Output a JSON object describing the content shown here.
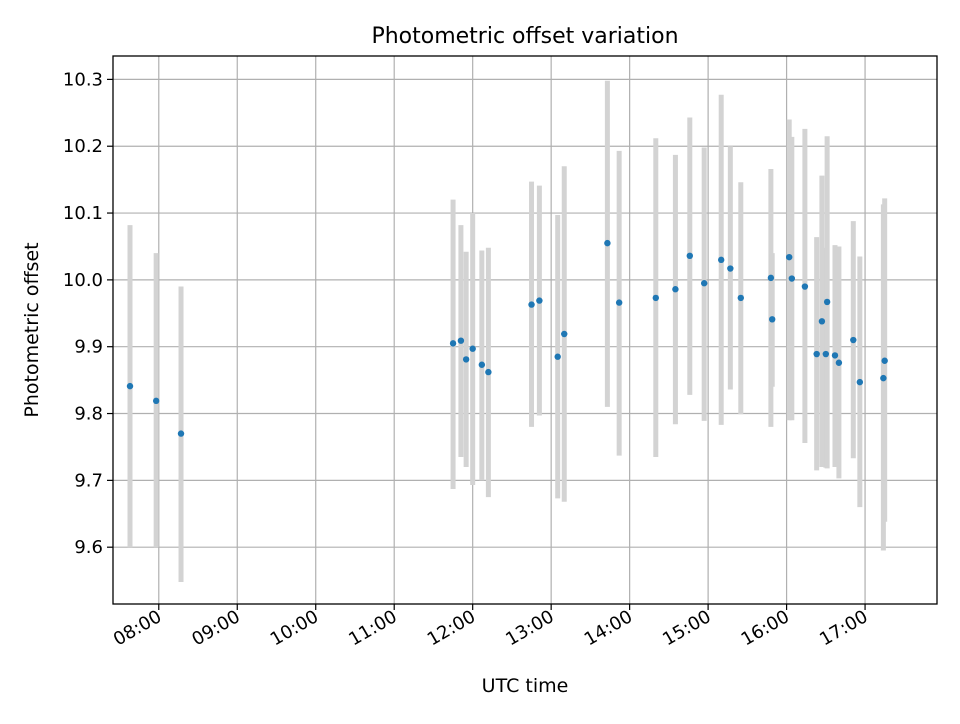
{
  "chart_data": {
    "type": "scatter",
    "title": "Photometric offset variation",
    "xlabel": "UTC time",
    "ylabel": "Photometric offset",
    "x_axis": {
      "type": "time",
      "range": [
        "07:25",
        "17:55"
      ],
      "tick_labels": [
        "08:00",
        "09:00",
        "10:00",
        "11:00",
        "12:00",
        "13:00",
        "14:00",
        "15:00",
        "16:00",
        "17:00"
      ]
    },
    "y_axis": {
      "range": [
        9.515,
        10.335
      ],
      "tick_labels": [
        "9.6",
        "9.7",
        "9.8",
        "9.9",
        "10.0",
        "10.1",
        "10.2",
        "10.3"
      ]
    },
    "grid": true,
    "colors": {
      "marker": "#1f77b4",
      "errorbar": "#d3d3d3",
      "grid": "#b0b0b0"
    },
    "series": [
      {
        "points": [
          {
            "x": "07:38",
            "y": 9.841,
            "low": 9.6,
            "high": 10.082
          },
          {
            "x": "07:58",
            "y": 9.819,
            "low": 9.6,
            "high": 10.04
          },
          {
            "x": "08:17",
            "y": 9.77,
            "low": 9.548,
            "high": 9.99
          },
          {
            "x": "11:45",
            "y": 9.905,
            "low": 9.687,
            "high": 10.12
          },
          {
            "x": "11:51",
            "y": 9.909,
            "low": 9.735,
            "high": 10.082
          },
          {
            "x": "11:55",
            "y": 9.881,
            "low": 9.72,
            "high": 10.042
          },
          {
            "x": "12:00",
            "y": 9.897,
            "low": 9.693,
            "high": 10.1
          },
          {
            "x": "12:07",
            "y": 9.873,
            "low": 9.7,
            "high": 10.044
          },
          {
            "x": "12:12",
            "y": 9.862,
            "low": 9.675,
            "high": 10.048
          },
          {
            "x": "12:45",
            "y": 9.963,
            "low": 9.78,
            "high": 10.147
          },
          {
            "x": "12:51",
            "y": 9.969,
            "low": 9.797,
            "high": 10.141
          },
          {
            "x": "13:05",
            "y": 9.885,
            "low": 9.673,
            "high": 10.097
          },
          {
            "x": "13:10",
            "y": 9.919,
            "low": 9.668,
            "high": 10.17
          },
          {
            "x": "13:43",
            "y": 10.055,
            "low": 9.81,
            "high": 10.298
          },
          {
            "x": "13:52",
            "y": 9.966,
            "low": 9.737,
            "high": 10.193
          },
          {
            "x": "14:20",
            "y": 9.973,
            "low": 9.735,
            "high": 10.212
          },
          {
            "x": "14:35",
            "y": 9.986,
            "low": 9.784,
            "high": 10.187
          },
          {
            "x": "14:46",
            "y": 10.036,
            "low": 9.828,
            "high": 10.243
          },
          {
            "x": "14:57",
            "y": 9.995,
            "low": 9.789,
            "high": 10.198
          },
          {
            "x": "15:10",
            "y": 10.03,
            "low": 9.783,
            "high": 10.277
          },
          {
            "x": "15:17",
            "y": 10.017,
            "low": 9.836,
            "high": 10.2
          },
          {
            "x": "15:25",
            "y": 9.973,
            "low": 9.799,
            "high": 10.146
          },
          {
            "x": "15:48",
            "y": 10.003,
            "low": 9.78,
            "high": 10.166
          },
          {
            "x": "15:49",
            "y": 9.941,
            "low": 9.84,
            "high": 10.04
          },
          {
            "x": "16:02",
            "y": 10.034,
            "low": 9.79,
            "high": 10.24
          },
          {
            "x": "16:04",
            "y": 10.002,
            "low": 9.79,
            "high": 10.214
          },
          {
            "x": "16:14",
            "y": 9.99,
            "low": 9.756,
            "high": 10.226
          },
          {
            "x": "16:23",
            "y": 9.889,
            "low": 9.715,
            "high": 10.064
          },
          {
            "x": "16:27",
            "y": 9.938,
            "low": 9.72,
            "high": 10.156
          },
          {
            "x": "16:30",
            "y": 9.889,
            "low": 9.719,
            "high": 10.048
          },
          {
            "x": "16:31",
            "y": 9.967,
            "low": 9.718,
            "high": 10.215
          },
          {
            "x": "16:37",
            "y": 9.887,
            "low": 9.72,
            "high": 10.052
          },
          {
            "x": "16:40",
            "y": 9.876,
            "low": 9.703,
            "high": 10.05
          },
          {
            "x": "16:51",
            "y": 9.91,
            "low": 9.733,
            "high": 10.088
          },
          {
            "x": "16:56",
            "y": 9.847,
            "low": 9.66,
            "high": 10.035
          },
          {
            "x": "17:14",
            "y": 9.853,
            "low": 9.595,
            "high": 10.113
          },
          {
            "x": "17:15",
            "y": 9.879,
            "low": 9.638,
            "high": 10.122
          }
        ]
      }
    ]
  }
}
